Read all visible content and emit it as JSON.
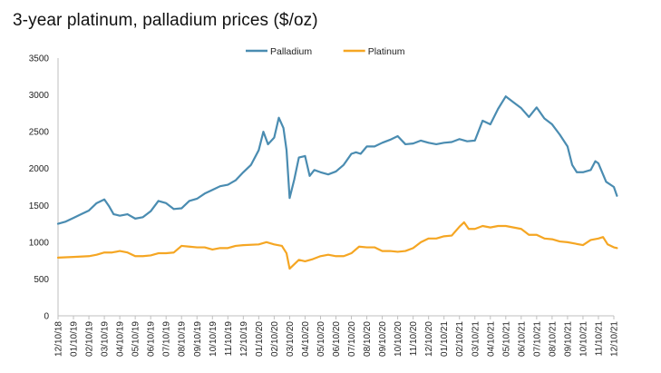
{
  "chart_data": {
    "type": "line",
    "title": "3-year platinum, palladium prices ($/oz)",
    "xlabel": "",
    "ylabel": "",
    "ylim": [
      0,
      3500
    ],
    "yticks": [
      0,
      500,
      1000,
      1500,
      2000,
      2500,
      3000,
      3500
    ],
    "legend_position": "top-center",
    "grid": false,
    "x_tick_labels": [
      "12/10/18",
      "01/10/19",
      "02/10/19",
      "03/10/19",
      "04/10/19",
      "05/10/19",
      "06/10/19",
      "07/10/19",
      "08/10/19",
      "09/10/19",
      "10/10/19",
      "11/10/19",
      "12/10/19",
      "01/10/20",
      "02/10/20",
      "03/10/20",
      "04/10/20",
      "05/10/20",
      "06/10/20",
      "07/10/20",
      "08/10/20",
      "09/10/20",
      "10/10/20",
      "11/10/20",
      "12/10/20",
      "01/10/21",
      "02/10/21",
      "03/10/21",
      "04/10/21",
      "05/10/21",
      "06/10/21",
      "07/10/21",
      "08/10/21",
      "09/10/21",
      "10/10/21",
      "11/10/21",
      "12/10/21"
    ],
    "series": [
      {
        "name": "Palladium",
        "color": "#4a8cb1",
        "points": [
          [
            0,
            1250
          ],
          [
            0.5,
            1280
          ],
          [
            1,
            1330
          ],
          [
            1.5,
            1380
          ],
          [
            2,
            1430
          ],
          [
            2.5,
            1530
          ],
          [
            3,
            1580
          ],
          [
            3.3,
            1490
          ],
          [
            3.6,
            1380
          ],
          [
            4,
            1360
          ],
          [
            4.5,
            1380
          ],
          [
            5,
            1320
          ],
          [
            5.5,
            1340
          ],
          [
            6,
            1420
          ],
          [
            6.5,
            1560
          ],
          [
            7,
            1530
          ],
          [
            7.5,
            1450
          ],
          [
            8,
            1460
          ],
          [
            8.5,
            1560
          ],
          [
            9,
            1590
          ],
          [
            9.5,
            1660
          ],
          [
            10,
            1710
          ],
          [
            10.5,
            1760
          ],
          [
            11,
            1780
          ],
          [
            11.5,
            1840
          ],
          [
            12,
            1950
          ],
          [
            12.5,
            2050
          ],
          [
            13,
            2250
          ],
          [
            13.3,
            2500
          ],
          [
            13.6,
            2330
          ],
          [
            14,
            2420
          ],
          [
            14.3,
            2690
          ],
          [
            14.6,
            2550
          ],
          [
            14.8,
            2250
          ],
          [
            15,
            1600
          ],
          [
            15.3,
            1850
          ],
          [
            15.6,
            2150
          ],
          [
            16,
            2170
          ],
          [
            16.3,
            1900
          ],
          [
            16.6,
            1980
          ],
          [
            17,
            1950
          ],
          [
            17.5,
            1920
          ],
          [
            18,
            1960
          ],
          [
            18.5,
            2050
          ],
          [
            19,
            2200
          ],
          [
            19.3,
            2220
          ],
          [
            19.6,
            2200
          ],
          [
            20,
            2300
          ],
          [
            20.5,
            2300
          ],
          [
            21,
            2350
          ],
          [
            21.5,
            2390
          ],
          [
            22,
            2440
          ],
          [
            22.5,
            2330
          ],
          [
            23,
            2340
          ],
          [
            23.5,
            2380
          ],
          [
            24,
            2350
          ],
          [
            24.5,
            2330
          ],
          [
            25,
            2350
          ],
          [
            25.5,
            2360
          ],
          [
            26,
            2400
          ],
          [
            26.5,
            2370
          ],
          [
            27,
            2380
          ],
          [
            27.5,
            2650
          ],
          [
            28,
            2600
          ],
          [
            28.5,
            2810
          ],
          [
            29,
            2980
          ],
          [
            29.5,
            2900
          ],
          [
            30,
            2820
          ],
          [
            30.5,
            2700
          ],
          [
            31,
            2830
          ],
          [
            31.5,
            2680
          ],
          [
            32,
            2600
          ],
          [
            32.5,
            2460
          ],
          [
            33,
            2300
          ],
          [
            33.3,
            2050
          ],
          [
            33.6,
            1950
          ],
          [
            34,
            1950
          ],
          [
            34.5,
            1980
          ],
          [
            34.8,
            2100
          ],
          [
            35,
            2070
          ],
          [
            35.5,
            1820
          ],
          [
            36,
            1750
          ],
          [
            36.2,
            1630
          ]
        ]
      },
      {
        "name": "Platinum",
        "color": "#f5a623",
        "points": [
          [
            0,
            790
          ],
          [
            1,
            800
          ],
          [
            2,
            810
          ],
          [
            2.5,
            830
          ],
          [
            3,
            860
          ],
          [
            3.5,
            860
          ],
          [
            4,
            880
          ],
          [
            4.5,
            860
          ],
          [
            5,
            810
          ],
          [
            5.5,
            810
          ],
          [
            6,
            820
          ],
          [
            6.5,
            850
          ],
          [
            7,
            850
          ],
          [
            7.5,
            860
          ],
          [
            8,
            950
          ],
          [
            8.5,
            940
          ],
          [
            9,
            930
          ],
          [
            9.5,
            930
          ],
          [
            10,
            900
          ],
          [
            10.5,
            920
          ],
          [
            11,
            920
          ],
          [
            11.5,
            950
          ],
          [
            12,
            960
          ],
          [
            13,
            970
          ],
          [
            13.5,
            1000
          ],
          [
            14,
            970
          ],
          [
            14.5,
            950
          ],
          [
            14.8,
            850
          ],
          [
            15,
            640
          ],
          [
            15.3,
            700
          ],
          [
            15.6,
            760
          ],
          [
            16,
            740
          ],
          [
            16.5,
            770
          ],
          [
            17,
            810
          ],
          [
            17.5,
            830
          ],
          [
            18,
            810
          ],
          [
            18.5,
            810
          ],
          [
            19,
            850
          ],
          [
            19.5,
            940
          ],
          [
            20,
            930
          ],
          [
            20.5,
            930
          ],
          [
            21,
            880
          ],
          [
            21.5,
            880
          ],
          [
            22,
            870
          ],
          [
            22.5,
            880
          ],
          [
            23,
            920
          ],
          [
            23.5,
            1000
          ],
          [
            24,
            1050
          ],
          [
            24.5,
            1050
          ],
          [
            25,
            1080
          ],
          [
            25.5,
            1090
          ],
          [
            26,
            1210
          ],
          [
            26.3,
            1270
          ],
          [
            26.6,
            1180
          ],
          [
            27,
            1180
          ],
          [
            27.5,
            1220
          ],
          [
            28,
            1200
          ],
          [
            28.5,
            1220
          ],
          [
            29,
            1220
          ],
          [
            29.5,
            1200
          ],
          [
            30,
            1180
          ],
          [
            30.5,
            1100
          ],
          [
            31,
            1100
          ],
          [
            31.5,
            1050
          ],
          [
            32,
            1040
          ],
          [
            32.5,
            1010
          ],
          [
            33,
            1000
          ],
          [
            33.5,
            980
          ],
          [
            34,
            960
          ],
          [
            34.5,
            1030
          ],
          [
            35,
            1050
          ],
          [
            35.3,
            1070
          ],
          [
            35.6,
            970
          ],
          [
            36,
            930
          ],
          [
            36.2,
            920
          ]
        ]
      }
    ]
  }
}
